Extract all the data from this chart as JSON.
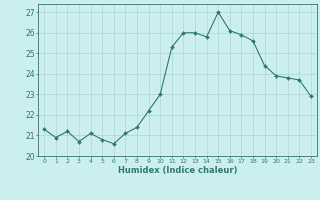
{
  "x": [
    0,
    1,
    2,
    3,
    4,
    5,
    6,
    7,
    8,
    9,
    10,
    11,
    12,
    13,
    14,
    15,
    16,
    17,
    18,
    19,
    20,
    21,
    22,
    23
  ],
  "y": [
    21.3,
    20.9,
    21.2,
    20.7,
    21.1,
    20.8,
    20.6,
    21.1,
    21.4,
    22.2,
    23.0,
    25.3,
    26.0,
    26.0,
    25.8,
    27.0,
    26.1,
    25.9,
    25.6,
    24.4,
    23.9,
    23.8,
    23.7,
    22.9
  ],
  "line_color": "#2e7d6e",
  "marker": "D",
  "marker_size": 2.0,
  "bg_color": "#cceeed",
  "grid_color": "#aad8d5",
  "xlabel": "Humidex (Indice chaleur)",
  "ylim": [
    20,
    27.4
  ],
  "xlim": [
    -0.5,
    23.5
  ],
  "yticks": [
    20,
    21,
    22,
    23,
    24,
    25,
    26,
    27
  ],
  "xticks": [
    0,
    1,
    2,
    3,
    4,
    5,
    6,
    7,
    8,
    9,
    10,
    11,
    12,
    13,
    14,
    15,
    16,
    17,
    18,
    19,
    20,
    21,
    22,
    23
  ]
}
